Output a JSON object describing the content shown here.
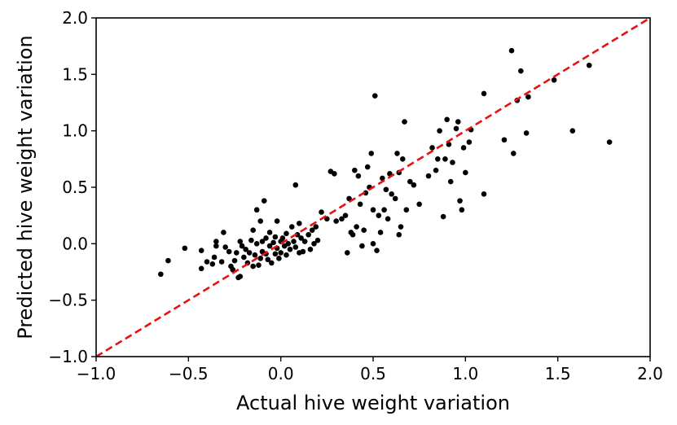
{
  "chart_data": {
    "type": "scatter",
    "title": "",
    "xlabel": "Actual hive weight variation",
    "ylabel": "Predicted hive weight variation",
    "xlim": [
      -1.0,
      2.0
    ],
    "ylim": [
      -1.0,
      2.0
    ],
    "xticks": [
      "−1.0",
      "−0.5",
      "0.0",
      "0.5",
      "1.0",
      "1.5",
      "2.0"
    ],
    "yticks": [
      "−1.0",
      "−0.5",
      "0.0",
      "0.5",
      "1.0",
      "1.5",
      "2.0"
    ],
    "grid": false,
    "legend": "none",
    "reference_line": {
      "from": [
        -1.0,
        -1.0
      ],
      "to": [
        2.0,
        2.0
      ],
      "color": "#e8110f",
      "style": "dashed"
    },
    "point_color": "#000000",
    "series": [
      {
        "points": [
          [
            -0.65,
            -0.27
          ],
          [
            -0.61,
            -0.15
          ],
          [
            -0.52,
            -0.04
          ],
          [
            -0.43,
            -0.22
          ],
          [
            -0.43,
            -0.06
          ],
          [
            -0.4,
            -0.16
          ],
          [
            -0.37,
            -0.18
          ],
          [
            -0.36,
            -0.12
          ],
          [
            -0.35,
            -0.02
          ],
          [
            -0.35,
            0.02
          ],
          [
            -0.32,
            -0.16
          ],
          [
            -0.31,
            0.1
          ],
          [
            -0.3,
            -0.03
          ],
          [
            -0.28,
            -0.07
          ],
          [
            -0.27,
            -0.2
          ],
          [
            -0.26,
            -0.23
          ],
          [
            -0.25,
            -0.15
          ],
          [
            -0.24,
            -0.08
          ],
          [
            -0.23,
            -0.3
          ],
          [
            -0.22,
            -0.29
          ],
          [
            -0.22,
            0.02
          ],
          [
            -0.21,
            -0.02
          ],
          [
            -0.2,
            -0.12
          ],
          [
            -0.19,
            -0.05
          ],
          [
            -0.18,
            -0.17
          ],
          [
            -0.17,
            -0.08
          ],
          [
            -0.16,
            0.03
          ],
          [
            -0.15,
            0.12
          ],
          [
            -0.15,
            -0.2
          ],
          [
            -0.14,
            -0.1
          ],
          [
            -0.13,
            0.0
          ],
          [
            -0.13,
            0.3
          ],
          [
            -0.12,
            -0.19
          ],
          [
            -0.11,
            -0.13
          ],
          [
            -0.11,
            0.2
          ],
          [
            -0.1,
            -0.07
          ],
          [
            -0.1,
            0.02
          ],
          [
            -0.09,
            0.38
          ],
          [
            -0.08,
            -0.09
          ],
          [
            -0.08,
            0.05
          ],
          [
            -0.07,
            -0.14
          ],
          [
            -0.06,
            -0.02
          ],
          [
            -0.06,
            0.1
          ],
          [
            -0.05,
            -0.17
          ],
          [
            -0.04,
            0.01
          ],
          [
            -0.03,
            -0.09
          ],
          [
            -0.03,
            0.06
          ],
          [
            -0.02,
            -0.04
          ],
          [
            -0.02,
            0.2
          ],
          [
            -0.01,
            -0.13
          ],
          [
            0.0,
            0.02
          ],
          [
            0.0,
            -0.08
          ],
          [
            0.01,
            0.05
          ],
          [
            0.02,
            -0.02
          ],
          [
            0.03,
            -0.1
          ],
          [
            0.03,
            0.09
          ],
          [
            0.04,
            0.0
          ],
          [
            0.05,
            -0.05
          ],
          [
            0.06,
            0.15
          ],
          [
            0.07,
            0.02
          ],
          [
            0.08,
            -0.03
          ],
          [
            0.08,
            0.52
          ],
          [
            0.09,
            0.08
          ],
          [
            0.1,
            -0.08
          ],
          [
            0.1,
            0.18
          ],
          [
            0.11,
            0.05
          ],
          [
            0.12,
            -0.07
          ],
          [
            0.13,
            0.02
          ],
          [
            0.15,
            0.08
          ],
          [
            0.16,
            -0.05
          ],
          [
            0.17,
            0.12
          ],
          [
            0.18,
            0.0
          ],
          [
            0.19,
            0.15
          ],
          [
            0.2,
            0.03
          ],
          [
            0.22,
            0.28
          ],
          [
            0.25,
            0.22
          ],
          [
            0.27,
            0.64
          ],
          [
            0.29,
            0.62
          ],
          [
            0.3,
            0.2
          ],
          [
            0.33,
            0.22
          ],
          [
            0.35,
            0.25
          ],
          [
            0.36,
            -0.08
          ],
          [
            0.37,
            0.4
          ],
          [
            0.38,
            0.1
          ],
          [
            0.39,
            0.08
          ],
          [
            0.4,
            0.65
          ],
          [
            0.41,
            0.15
          ],
          [
            0.42,
            0.6
          ],
          [
            0.43,
            0.35
          ],
          [
            0.44,
            -0.02
          ],
          [
            0.45,
            0.12
          ],
          [
            0.46,
            0.45
          ],
          [
            0.47,
            0.68
          ],
          [
            0.48,
            0.5
          ],
          [
            0.49,
            0.8
          ],
          [
            0.5,
            0.3
          ],
          [
            0.5,
            0.0
          ],
          [
            0.51,
            1.31
          ],
          [
            0.52,
            -0.06
          ],
          [
            0.53,
            0.25
          ],
          [
            0.54,
            0.1
          ],
          [
            0.55,
            0.58
          ],
          [
            0.56,
            0.3
          ],
          [
            0.57,
            0.48
          ],
          [
            0.58,
            0.22
          ],
          [
            0.59,
            0.62
          ],
          [
            0.6,
            0.44
          ],
          [
            0.62,
            0.4
          ],
          [
            0.63,
            0.8
          ],
          [
            0.64,
            0.63
          ],
          [
            0.64,
            0.08
          ],
          [
            0.65,
            0.15
          ],
          [
            0.66,
            0.75
          ],
          [
            0.67,
            1.08
          ],
          [
            0.68,
            0.3
          ],
          [
            0.7,
            0.55
          ],
          [
            0.72,
            0.52
          ],
          [
            0.75,
            0.35
          ],
          [
            0.8,
            0.6
          ],
          [
            0.82,
            0.85
          ],
          [
            0.84,
            0.65
          ],
          [
            0.85,
            0.75
          ],
          [
            0.86,
            1.0
          ],
          [
            0.88,
            0.24
          ],
          [
            0.89,
            0.75
          ],
          [
            0.9,
            1.1
          ],
          [
            0.91,
            0.88
          ],
          [
            0.92,
            0.55
          ],
          [
            0.93,
            0.72
          ],
          [
            0.95,
            1.02
          ],
          [
            0.96,
            1.08
          ],
          [
            0.97,
            0.38
          ],
          [
            0.98,
            0.3
          ],
          [
            0.99,
            0.85
          ],
          [
            1.0,
            0.63
          ],
          [
            1.02,
            0.9
          ],
          [
            1.03,
            1.01
          ],
          [
            1.1,
            1.33
          ],
          [
            1.1,
            0.44
          ],
          [
            1.21,
            0.92
          ],
          [
            1.25,
            1.71
          ],
          [
            1.26,
            0.8
          ],
          [
            1.28,
            1.27
          ],
          [
            1.3,
            1.53
          ],
          [
            1.33,
            0.98
          ],
          [
            1.34,
            1.3
          ],
          [
            1.48,
            1.45
          ],
          [
            1.58,
            1.0
          ],
          [
            1.67,
            1.58
          ],
          [
            1.78,
            0.9
          ]
        ]
      }
    ]
  }
}
